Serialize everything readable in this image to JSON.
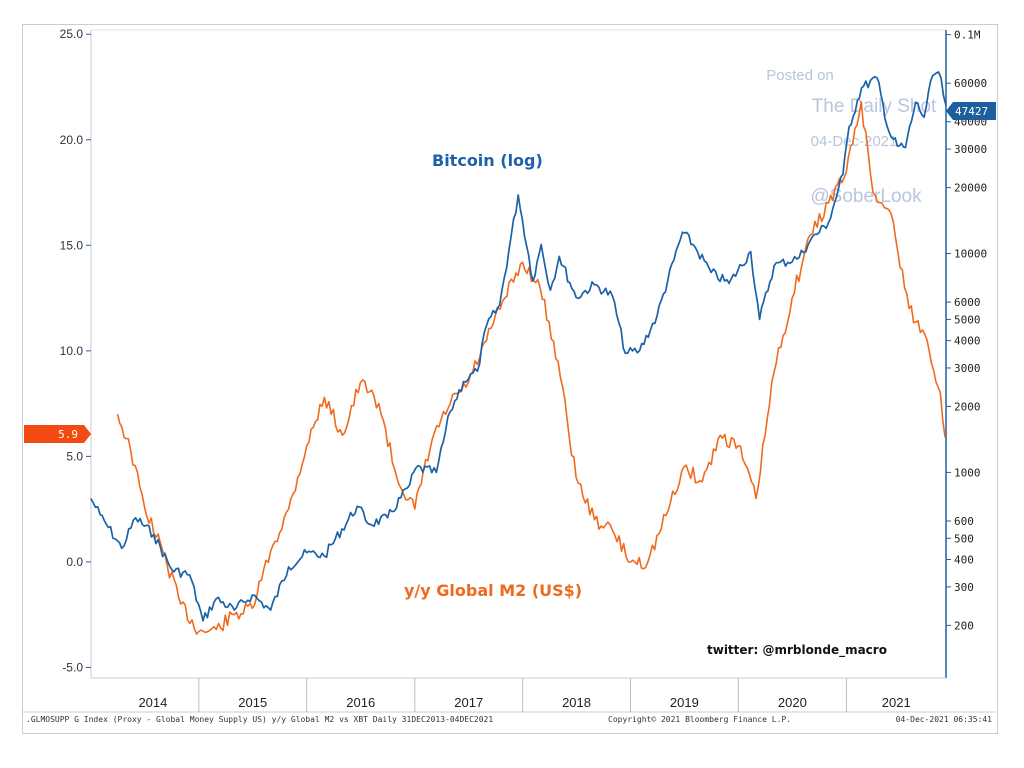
{
  "chart_data": {
    "type": "line",
    "title": "",
    "left_axis": {
      "ticks": [
        "25.0",
        "20.0",
        "15.0",
        "10.0",
        "5.0",
        "0.0",
        "-5.0"
      ],
      "tick_values": [
        25,
        20,
        15,
        10,
        5,
        0,
        -5
      ],
      "ylim": [
        -5.5,
        25.2
      ]
    },
    "right_axis": {
      "scale": "log",
      "ticks": [
        "0.1M",
        "60000",
        "40000",
        "30000",
        "20000",
        "10000",
        "6000",
        "5000",
        "4000",
        "3000",
        "2000",
        "1000",
        "600",
        "500",
        "400",
        "300",
        "200"
      ],
      "tick_values": [
        100000,
        60000,
        40000,
        30000,
        20000,
        10000,
        6000,
        5000,
        4000,
        3000,
        2000,
        1000,
        600,
        500,
        400,
        300,
        200
      ],
      "ylim": [
        115,
        105000
      ]
    },
    "x_axis": {
      "years": [
        "2014",
        "2015",
        "2016",
        "2017",
        "2018",
        "2019",
        "2020",
        "2021"
      ],
      "xlim": [
        "2014-01-01",
        "2021-12-04"
      ]
    },
    "series": [
      {
        "name": "Bitcoin (log)",
        "axis": "right",
        "color": "#1b62a8",
        "points": [
          [
            "2013-12-31",
            760
          ],
          [
            "2014-02-01",
            640
          ],
          [
            "2014-03-01",
            560
          ],
          [
            "2014-04-15",
            450
          ],
          [
            "2014-06-01",
            620
          ],
          [
            "2014-08-01",
            520
          ],
          [
            "2014-10-01",
            360
          ],
          [
            "2014-12-01",
            340
          ],
          [
            "2015-01-15",
            210
          ],
          [
            "2015-03-01",
            265
          ],
          [
            "2015-05-01",
            235
          ],
          [
            "2015-07-01",
            275
          ],
          [
            "2015-09-01",
            235
          ],
          [
            "2015-11-01",
            370
          ],
          [
            "2016-01-01",
            430
          ],
          [
            "2016-03-01",
            415
          ],
          [
            "2016-06-20",
            700
          ],
          [
            "2016-08-01",
            580
          ],
          [
            "2016-10-01",
            620
          ],
          [
            "2016-12-15",
            880
          ],
          [
            "2017-01-05",
            1050
          ],
          [
            "2017-03-15",
            1000
          ],
          [
            "2017-05-01",
            1900
          ],
          [
            "2017-06-15",
            2600
          ],
          [
            "2017-08-01",
            2900
          ],
          [
            "2017-09-01",
            4700
          ],
          [
            "2017-10-15",
            5800
          ],
          [
            "2017-12-17",
            18500
          ],
          [
            "2018-02-05",
            7500
          ],
          [
            "2018-03-05",
            11000
          ],
          [
            "2018-04-05",
            6800
          ],
          [
            "2018-05-05",
            9700
          ],
          [
            "2018-07-01",
            6300
          ],
          [
            "2018-09-01",
            7200
          ],
          [
            "2018-11-01",
            6400
          ],
          [
            "2018-12-15",
            3500
          ],
          [
            "2019-02-01",
            3600
          ],
          [
            "2019-04-01",
            5200
          ],
          [
            "2019-06-26",
            12500
          ],
          [
            "2019-08-01",
            11000
          ],
          [
            "2019-10-01",
            8200
          ],
          [
            "2019-12-01",
            7300
          ],
          [
            "2020-02-12",
            10200
          ],
          [
            "2020-03-13",
            5000
          ],
          [
            "2020-05-01",
            8800
          ],
          [
            "2020-07-25",
            9600
          ],
          [
            "2020-09-01",
            11500
          ],
          [
            "2020-11-01",
            13800
          ],
          [
            "2020-12-20",
            23000
          ],
          [
            "2021-01-10",
            38000
          ],
          [
            "2021-02-21",
            57000
          ],
          [
            "2021-04-14",
            63500
          ],
          [
            "2021-05-25",
            36000
          ],
          [
            "2021-06-22",
            31000
          ],
          [
            "2021-07-20",
            30500
          ],
          [
            "2021-08-23",
            49000
          ],
          [
            "2021-09-21",
            42000
          ],
          [
            "2021-10-20",
            65000
          ],
          [
            "2021-11-09",
            67500
          ],
          [
            "2021-12-04",
            47427
          ]
        ]
      },
      {
        "name": "y/y Global M2 (US$)",
        "axis": "left",
        "color": "#f06a1e",
        "points": [
          [
            "2014-04-01",
            7.0
          ],
          [
            "2014-05-15",
            5.3
          ],
          [
            "2014-07-01",
            2.6
          ],
          [
            "2014-09-01",
            0.5
          ],
          [
            "2014-11-01",
            -2.0
          ],
          [
            "2015-01-01",
            -3.3
          ],
          [
            "2015-03-01",
            -3.2
          ],
          [
            "2015-05-01",
            -2.5
          ],
          [
            "2015-07-01",
            -2.2
          ],
          [
            "2015-09-01",
            0.5
          ],
          [
            "2015-11-01",
            2.5
          ],
          [
            "2016-01-01",
            5.5
          ],
          [
            "2016-03-01",
            7.8
          ],
          [
            "2016-05-01",
            6.0
          ],
          [
            "2016-07-01",
            8.5
          ],
          [
            "2016-09-01",
            7.5
          ],
          [
            "2016-11-01",
            4.0
          ],
          [
            "2017-01-01",
            2.5
          ],
          [
            "2017-03-01",
            5.8
          ],
          [
            "2017-05-01",
            7.5
          ],
          [
            "2017-07-01",
            8.5
          ],
          [
            "2017-09-01",
            10.5
          ],
          [
            "2017-11-01",
            12.5
          ],
          [
            "2018-01-01",
            14.2
          ],
          [
            "2018-03-01",
            13.0
          ],
          [
            "2018-05-01",
            9.5
          ],
          [
            "2018-07-01",
            4.0
          ],
          [
            "2018-09-01",
            2.0
          ],
          [
            "2018-11-01",
            1.5
          ],
          [
            "2019-01-01",
            0.0
          ],
          [
            "2019-03-01",
            0.0
          ],
          [
            "2019-05-01",
            2.2
          ],
          [
            "2019-07-01",
            4.5
          ],
          [
            "2019-09-01",
            3.8
          ],
          [
            "2019-11-01",
            6.0
          ],
          [
            "2020-01-01",
            5.5
          ],
          [
            "2020-03-01",
            3.0
          ],
          [
            "2020-05-01",
            9.0
          ],
          [
            "2020-07-01",
            12.5
          ],
          [
            "2020-09-01",
            15.5
          ],
          [
            "2020-11-01",
            17.0
          ],
          [
            "2021-01-01",
            18.5
          ],
          [
            "2021-02-20",
            21.8
          ],
          [
            "2021-04-01",
            17.5
          ],
          [
            "2021-06-01",
            16.5
          ],
          [
            "2021-08-01",
            12.0
          ],
          [
            "2021-10-01",
            10.5
          ],
          [
            "2021-11-15",
            8.0
          ],
          [
            "2021-12-01",
            5.9
          ]
        ]
      }
    ],
    "last_value_labels": {
      "left": "5.9",
      "right": "47427"
    },
    "annotations": {
      "btc": "Bitcoin (log)",
      "m2": "y/y Global M2 (US$)",
      "credit": "twitter: @mrblonde_macro"
    },
    "footer": {
      "left": ".GLMOSUPP G Index (Proxy - Global Money Supply US) y/y Global M2 vs XBT  Daily 31DEC2013-04DEC2021",
      "center": "Copyright© 2021 Bloomberg Finance L.P.",
      "right": "04-Dec-2021 06:35:41"
    },
    "watermark": {
      "line1": "Posted on",
      "line2": "The Daily Shot",
      "line3": "04-Dec-2021",
      "line4": "@SoberLook"
    },
    "colors": {
      "bitcoin": "#1b62a8",
      "m2": "#f06a1e",
      "axis": "#1b62a8",
      "watermark": "#b9c4de"
    }
  }
}
